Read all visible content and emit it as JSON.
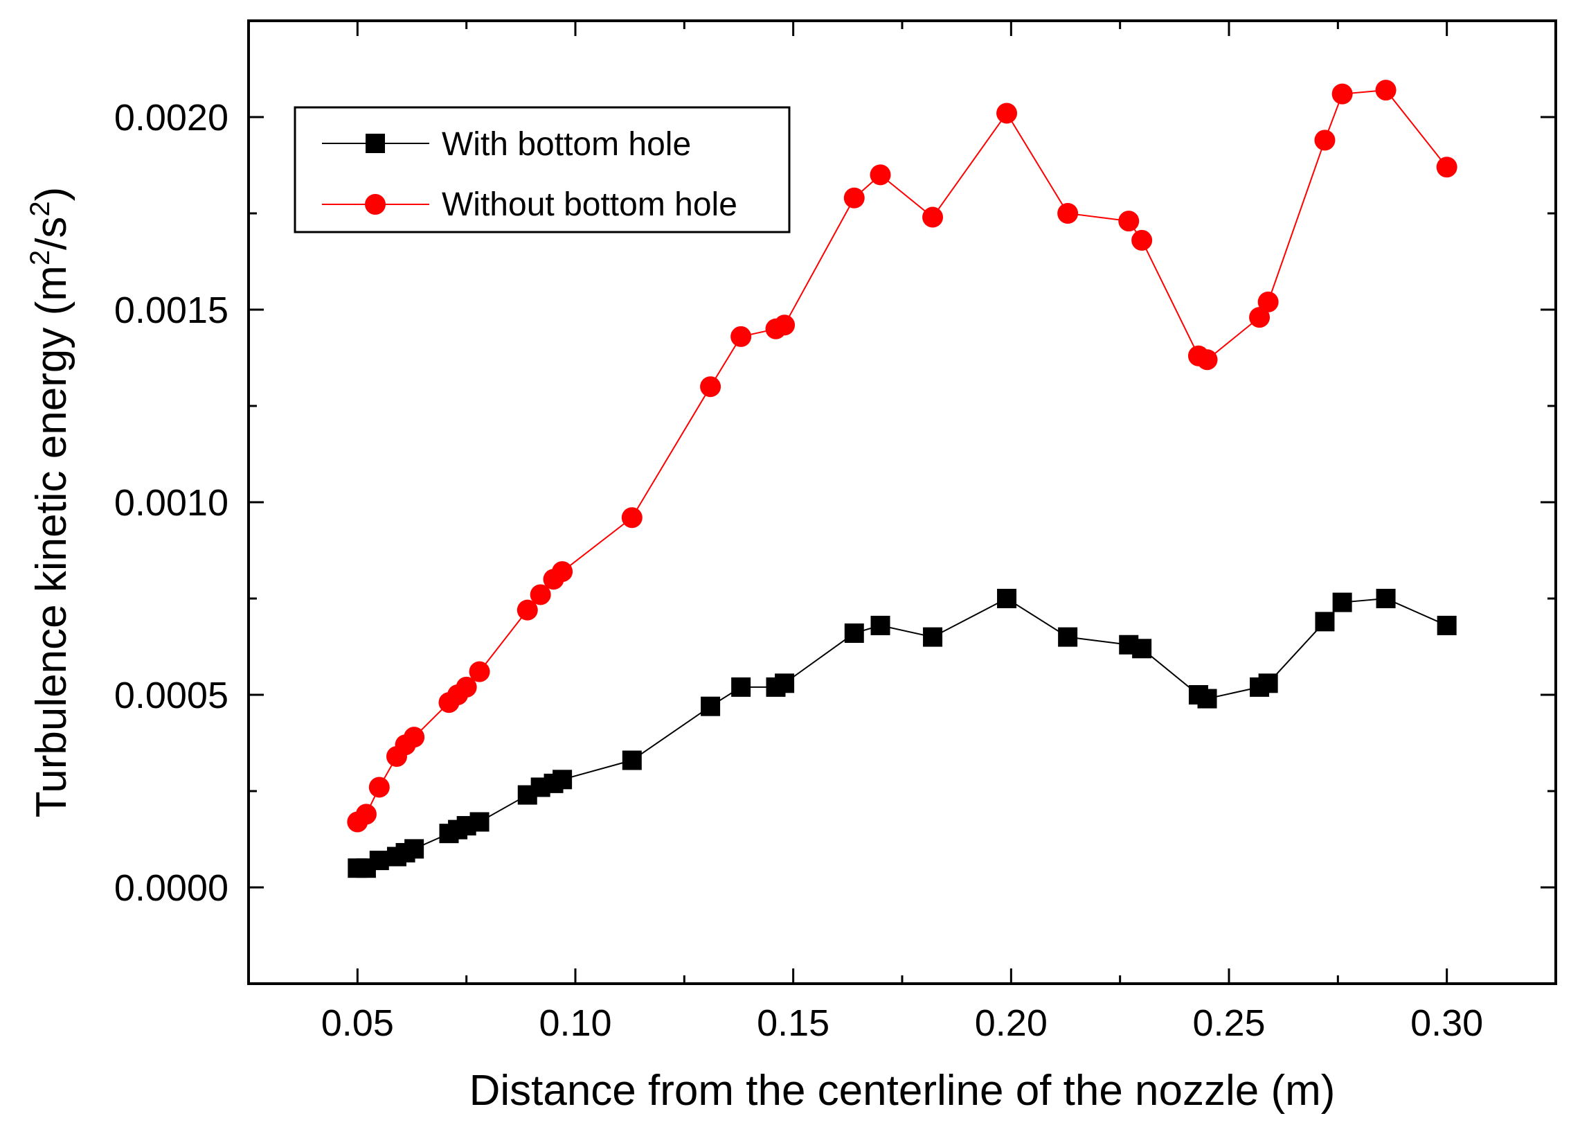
{
  "chart_data": {
    "type": "line",
    "title": "",
    "xlabel": "Distance from the centerline of the nozzle (m)",
    "ylabel_main": "Turbulence kinetic energy  (m",
    "ylabel_sup1": "2",
    "ylabel_mid": "/s",
    "ylabel_sup2": "2",
    "ylabel_end": ")",
    "xlim": [
      0.025,
      0.325
    ],
    "ylim": [
      -0.00025,
      0.00225
    ],
    "xticks": [
      0.05,
      0.1,
      0.15,
      0.2,
      0.25,
      0.3
    ],
    "xtick_labels": [
      "0.05",
      "0.10",
      "0.15",
      "0.20",
      "0.25",
      "0.30"
    ],
    "yticks": [
      0.0,
      0.0005,
      0.001,
      0.0015,
      0.002
    ],
    "ytick_labels": [
      "0.0000",
      "0.0005",
      "0.0010",
      "0.0015",
      "0.0020"
    ],
    "legend_position": "top-left",
    "series": [
      {
        "name": "With bottom hole",
        "color": "#000000",
        "marker": "square",
        "x": [
          0.05,
          0.052,
          0.055,
          0.059,
          0.061,
          0.063,
          0.071,
          0.073,
          0.075,
          0.078,
          0.089,
          0.092,
          0.095,
          0.097,
          0.113,
          0.131,
          0.138,
          0.146,
          0.148,
          0.164,
          0.17,
          0.182,
          0.199,
          0.213,
          0.227,
          0.23,
          0.243,
          0.245,
          0.257,
          0.259,
          0.272,
          0.276,
          0.286,
          0.3
        ],
        "y": [
          5e-05,
          5e-05,
          7e-05,
          8e-05,
          9e-05,
          0.0001,
          0.00014,
          0.00015,
          0.00016,
          0.00017,
          0.00024,
          0.00026,
          0.00027,
          0.00028,
          0.00033,
          0.00047,
          0.00052,
          0.00052,
          0.00053,
          0.00066,
          0.00068,
          0.00065,
          0.00075,
          0.00065,
          0.00063,
          0.00062,
          0.0005,
          0.00049,
          0.00052,
          0.00053,
          0.00069,
          0.00074,
          0.00075,
          0.00068
        ]
      },
      {
        "name": "Without bottom hole",
        "color": "#ff0000",
        "marker": "circle",
        "x": [
          0.05,
          0.052,
          0.055,
          0.059,
          0.061,
          0.063,
          0.071,
          0.073,
          0.075,
          0.078,
          0.089,
          0.092,
          0.095,
          0.097,
          0.113,
          0.131,
          0.138,
          0.146,
          0.148,
          0.164,
          0.17,
          0.182,
          0.199,
          0.213,
          0.227,
          0.23,
          0.243,
          0.245,
          0.257,
          0.259,
          0.272,
          0.276,
          0.286,
          0.3
        ],
        "y": [
          0.00017,
          0.00019,
          0.00026,
          0.00034,
          0.00037,
          0.00039,
          0.00048,
          0.0005,
          0.00052,
          0.00056,
          0.00072,
          0.00076,
          0.0008,
          0.00082,
          0.00096,
          0.0013,
          0.00143,
          0.00145,
          0.00146,
          0.00179,
          0.00185,
          0.00174,
          0.00201,
          0.00175,
          0.00173,
          0.00168,
          0.00138,
          0.00137,
          0.00148,
          0.00152,
          0.00194,
          0.00206,
          0.00207,
          0.00187
        ]
      }
    ]
  }
}
